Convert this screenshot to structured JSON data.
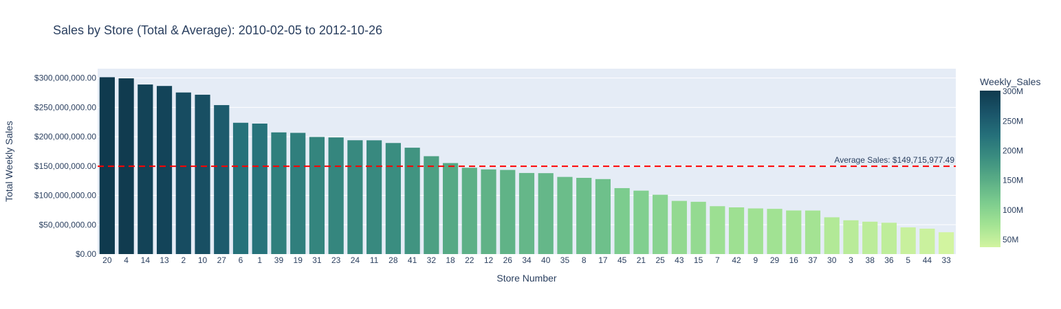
{
  "chart_data": {
    "type": "bar",
    "title": "Sales by Store (Total & Average): 2010-02-05 to 2012-10-26",
    "xlabel": "Store Number",
    "ylabel": "Total Weekly Sales",
    "ylim": [
      0,
      316000000
    ],
    "yticks": [
      0,
      50000000,
      100000000,
      150000000,
      200000000,
      250000000,
      300000000
    ],
    "ytick_labels": [
      "$0.00",
      "$50,000,000.00",
      "$100,000,000.00",
      "$150,000,000.00",
      "$200,000,000.00",
      "$250,000,000.00",
      "$300,000,000.00"
    ],
    "categories": [
      "20",
      "4",
      "14",
      "13",
      "2",
      "10",
      "27",
      "6",
      "1",
      "39",
      "19",
      "31",
      "23",
      "24",
      "11",
      "28",
      "41",
      "32",
      "18",
      "22",
      "12",
      "26",
      "34",
      "40",
      "35",
      "8",
      "17",
      "45",
      "21",
      "25",
      "43",
      "15",
      "7",
      "42",
      "9",
      "29",
      "16",
      "37",
      "30",
      "3",
      "38",
      "36",
      "5",
      "44",
      "33"
    ],
    "values": [
      301400000,
      299500000,
      289000000,
      286500000,
      275400000,
      271600000,
      253900000,
      223800000,
      222400000,
      207400000,
      206600000,
      199600000,
      198800000,
      194000000,
      193900000,
      189300000,
      181300000,
      166800000,
      155100000,
      147100000,
      144300000,
      143400000,
      138200000,
      137900000,
      131500000,
      129900000,
      127800000,
      112400000,
      108100000,
      101100000,
      90600000,
      89100000,
      81600000,
      79600000,
      77800000,
      77100000,
      74300000,
      74200000,
      62700000,
      57600000,
      55200000,
      53400000,
      45500000,
      43300000,
      37200000
    ],
    "average": 149715977.49,
    "average_label": "Average Sales: $149,715,977.49",
    "average_line_color": "#ff0000",
    "plot_bgcolor": "#e5ecf6",
    "colorscale": [
      "#d2f4a0",
      "#a3e393",
      "#7ccc8e",
      "#5aad86",
      "#3b8e80",
      "#25707a",
      "#1a5469",
      "#0f3a4e"
    ],
    "colorbar": {
      "title": "Weekly_Sales",
      "range": [
        37200000,
        301400000
      ],
      "ticks": [
        50000000,
        100000000,
        150000000,
        200000000,
        250000000,
        300000000
      ],
      "tick_labels": [
        "50M",
        "100M",
        "150M",
        "200M",
        "250M",
        "300M"
      ]
    },
    "grid": true,
    "legend": "none"
  }
}
